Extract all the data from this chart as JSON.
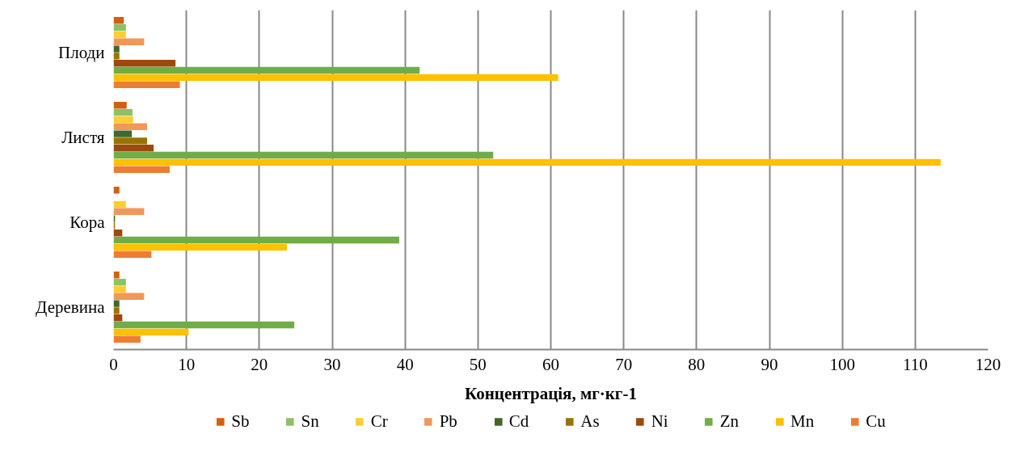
{
  "chart_data": {
    "type": "bar",
    "orientation": "horizontal",
    "xlabel": "Концентрація, мг·кг-1",
    "categories": [
      "Плоди",
      "Листя",
      "Кора",
      "Деревина"
    ],
    "series": [
      {
        "name": "Sb",
        "color": "#d26012",
        "values": [
          1.4,
          1.8,
          0.8,
          0.8
        ]
      },
      {
        "name": "Sn",
        "color": "#8cc168",
        "values": [
          1.7,
          2.6,
          0,
          1.7
        ]
      },
      {
        "name": "Cr",
        "color": "#ffcd33",
        "values": [
          1.7,
          2.7,
          1.7,
          1.7
        ]
      },
      {
        "name": "Pb",
        "color": "#f1975a",
        "values": [
          4.2,
          4.6,
          4.2,
          4.2
        ]
      },
      {
        "name": "Cd",
        "color": "#43682b",
        "values": [
          0.8,
          2.5,
          0.2,
          0.8
        ]
      },
      {
        "name": "As",
        "color": "#997300",
        "values": [
          0.8,
          4.6,
          0.2,
          0.8
        ]
      },
      {
        "name": "Ni",
        "color": "#9e480e",
        "values": [
          8.5,
          5.5,
          1.2,
          1.2
        ]
      },
      {
        "name": "Zn",
        "color": "#70ad47",
        "values": [
          42.0,
          52.1,
          39.2,
          24.8
        ]
      },
      {
        "name": "Mn",
        "color": "#ffc000",
        "values": [
          61.0,
          113.5,
          23.8,
          10.3
        ]
      },
      {
        "name": "Cu",
        "color": "#ed7d31",
        "values": [
          9.1,
          7.7,
          5.2,
          3.7
        ]
      }
    ],
    "xlim": [
      0,
      120
    ],
    "xticks": [
      0,
      10,
      20,
      30,
      40,
      50,
      60,
      70,
      80,
      90,
      100,
      110,
      120
    ],
    "grid": "x",
    "legend": "bottom"
  }
}
